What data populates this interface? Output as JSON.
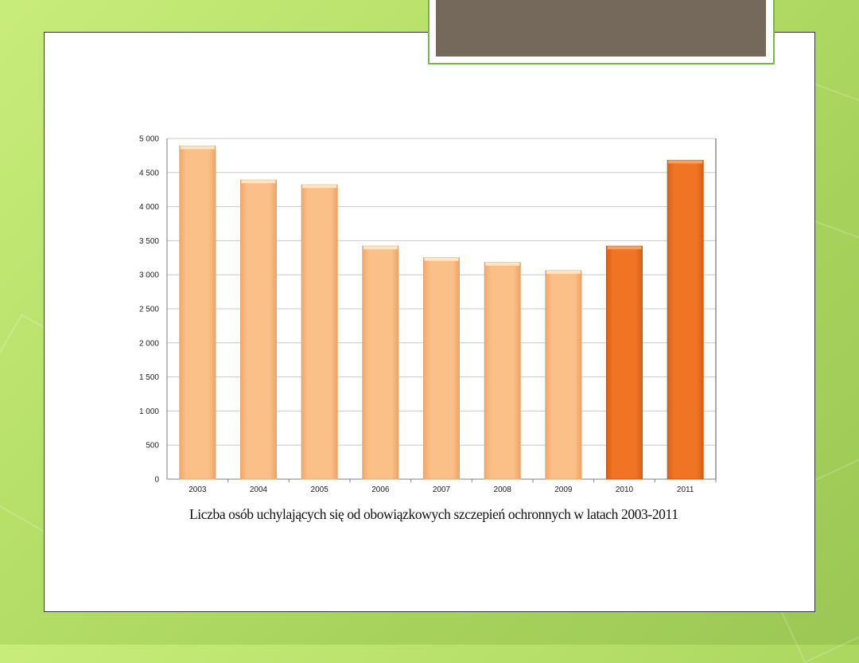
{
  "chart_data": {
    "type": "bar",
    "title": "",
    "caption": "Liczba osób uchylających się od obowiązkowych szczepień ochronnych w latach 2003-2011",
    "xlabel": "",
    "ylabel": "",
    "categories": [
      "2003",
      "2004",
      "2005",
      "2006",
      "2007",
      "2008",
      "2009",
      "2010",
      "2011"
    ],
    "values": [
      4890,
      4390,
      4320,
      3420,
      3250,
      3180,
      3060,
      3420,
      4680
    ],
    "highlighted_categories": [
      "2010",
      "2011"
    ],
    "ylim": [
      0,
      5000
    ],
    "yticks": [
      0,
      500,
      1000,
      1500,
      2000,
      2500,
      3000,
      3500,
      4000,
      4500,
      5000
    ],
    "ytick_labels": [
      "0",
      "500",
      "1 000",
      "1 500",
      "2 000",
      "2 500",
      "3 000",
      "3 500",
      "4 000",
      "4 500",
      "5 000"
    ],
    "grid": true,
    "legend": "none",
    "colors": {
      "bar": "#fbbf88",
      "bar_highlight": "#f07424",
      "grid": "#c8c8c8",
      "axis": "#808080"
    }
  },
  "theme": {
    "title_box_color": "#74695a",
    "title_box_border": "#7ab648",
    "background_green": "#b6e06a"
  }
}
